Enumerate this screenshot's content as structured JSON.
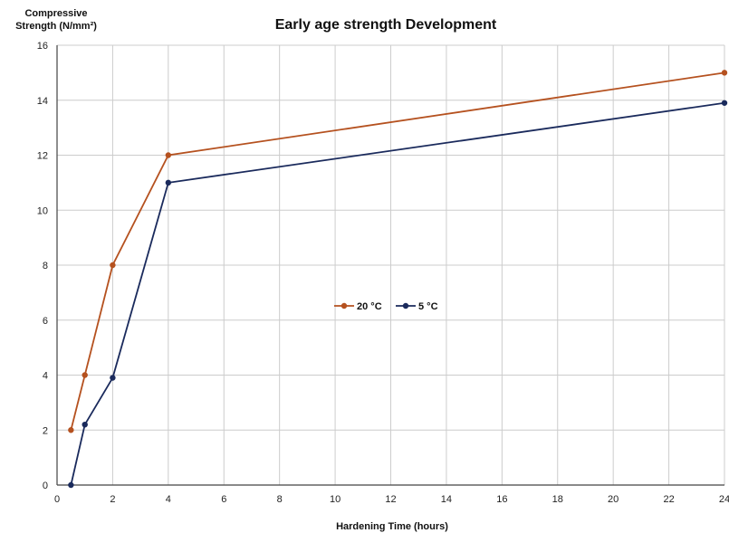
{
  "chart_data": {
    "type": "line",
    "title": "Early age strength Development",
    "xlabel": "Hardening Time (hours)",
    "ylabel_lines": [
      "Compressive",
      "Strength (N/mm²)"
    ],
    "xlim": [
      0,
      24
    ],
    "ylim": [
      0,
      16
    ],
    "xticks": [
      0,
      2,
      4,
      6,
      8,
      10,
      12,
      14,
      16,
      18,
      20,
      22,
      24
    ],
    "yticks": [
      0,
      2,
      4,
      6,
      8,
      10,
      12,
      14,
      16
    ],
    "grid": true,
    "legend_position": "center",
    "series": [
      {
        "name": "20 °C",
        "color": "#b5511f",
        "points": [
          [
            0.5,
            2
          ],
          [
            1,
            4
          ],
          [
            2,
            8
          ],
          [
            4,
            12
          ],
          [
            24,
            15
          ]
        ]
      },
      {
        "name": "5 °C",
        "color": "#1a2a5c",
        "points": [
          [
            0.5,
            0
          ],
          [
            1,
            2.2
          ],
          [
            2,
            3.9
          ],
          [
            4,
            11
          ],
          [
            24,
            13.9
          ]
        ]
      }
    ]
  }
}
